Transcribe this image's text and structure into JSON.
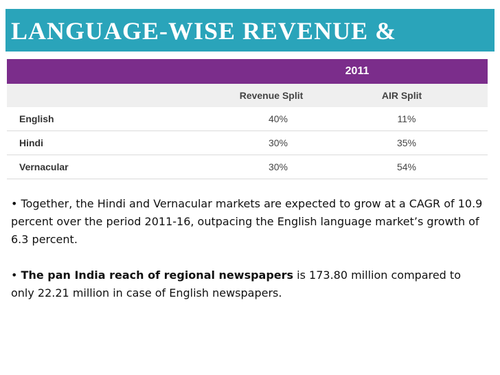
{
  "slide": {
    "title": "LANGUAGE-WISE REVENUE &"
  },
  "table": {
    "year": "2011",
    "headers": [
      "",
      "Revenue Split",
      "AIR Split"
    ],
    "rows": [
      {
        "language": "English",
        "revenue_split": "40%",
        "air_split": "11%"
      },
      {
        "language": "Hindi",
        "revenue_split": "30%",
        "air_split": "35%"
      },
      {
        "language": "Vernacular",
        "revenue_split": "30%",
        "air_split": "54%"
      }
    ]
  },
  "bullets": [
    {
      "bullet": "•",
      "text": "Together, the Hindi and Vernacular markets are expected to grow at a CAGR of 10.9 percent over the period 2011-16, outpacing the English language market’s growth of 6.3 percent."
    },
    {
      "bullet": "•",
      "bold_text": "The pan India reach of regional newspapers",
      "text": "is 173.80 million compared to only 22.21 million in case of English newspapers."
    }
  ],
  "colors": {
    "title_bar": "#2aa4ba",
    "year_bar": "#7b2d8b",
    "header_row": "#efefef"
  }
}
